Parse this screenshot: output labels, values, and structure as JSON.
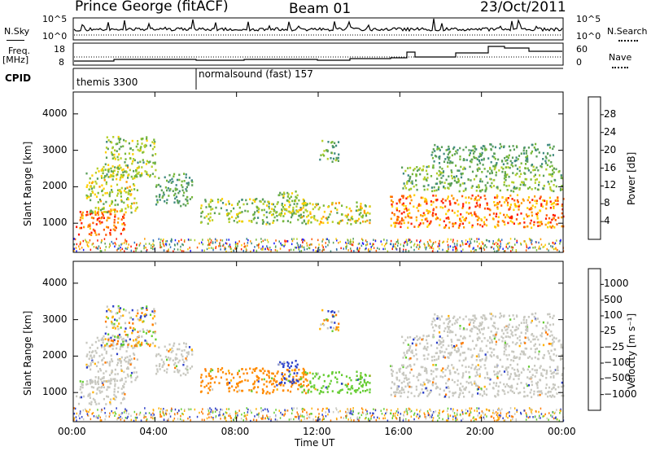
{
  "header": {
    "station": "Prince George (fitACF)",
    "beam": "Beam 01",
    "date": "23/Oct/2011"
  },
  "strip_panels": {
    "nsky": {
      "label": "N.Sky",
      "ticks": [
        "10^5",
        "10^0"
      ],
      "right_label": "N.Search",
      "right_ticks": [
        "10^5",
        "10^0"
      ]
    },
    "freq": {
      "label_top": "Freq.",
      "label_bottom": "[MHz]",
      "ticks": [
        "18",
        "8"
      ],
      "right_label": "Nave",
      "right_ticks": [
        "60",
        "0"
      ]
    },
    "cpid": {
      "label": "CPID",
      "segments": [
        "themis 3300",
        "normalsound (fast) 157"
      ]
    }
  },
  "chart_data": [
    {
      "type": "heatmap",
      "title": "Power",
      "xlabel": "",
      "ylabel": "Slant Range [km]",
      "x_ticks": [
        "00:00",
        "04:00",
        "08:00",
        "12:00",
        "16:00",
        "20:00",
        "00:00"
      ],
      "xlim_hours": [
        0,
        24
      ],
      "y_ticks": [
        1000,
        2000,
        3000,
        4000
      ],
      "ylim": [
        200,
        4600
      ],
      "colorbar": {
        "label": "Power [dB]",
        "ticks": [
          "4",
          "8",
          "12",
          "16",
          "20",
          "24",
          "28"
        ],
        "range": [
          0,
          30
        ],
        "colors": [
          "#1a1aff",
          "#2f6fbf",
          "#3f8a80",
          "#5a9e5a",
          "#77b83a",
          "#b5cf2a",
          "#ffd000",
          "#ff9a00",
          "#ff5a00",
          "#ff1a00"
        ]
      }
    },
    {
      "type": "heatmap",
      "title": "Velocity",
      "xlabel": "Time UT",
      "ylabel": "Slant Range [km]",
      "x_ticks": [
        "00:00",
        "04:00",
        "08:00",
        "12:00",
        "16:00",
        "20:00",
        "00:00"
      ],
      "xlim_hours": [
        0,
        24
      ],
      "y_ticks": [
        1000,
        2000,
        3000,
        4000
      ],
      "ylim": [
        200,
        4600
      ],
      "colorbar": {
        "label": "Velocity [m s⁻¹]",
        "ticks": [
          "1000",
          "500",
          "100",
          "25",
          "−25",
          "−100",
          "−500",
          "−1000"
        ],
        "colors": [
          "#2b3fc8",
          "#3c74b8",
          "#3c9a6a",
          "#68c83c",
          "#c8c8c0",
          "#c8c8c0",
          "#ffb000",
          "#ff7a00",
          "#ff3c00",
          "#ff0000"
        ]
      }
    }
  ]
}
